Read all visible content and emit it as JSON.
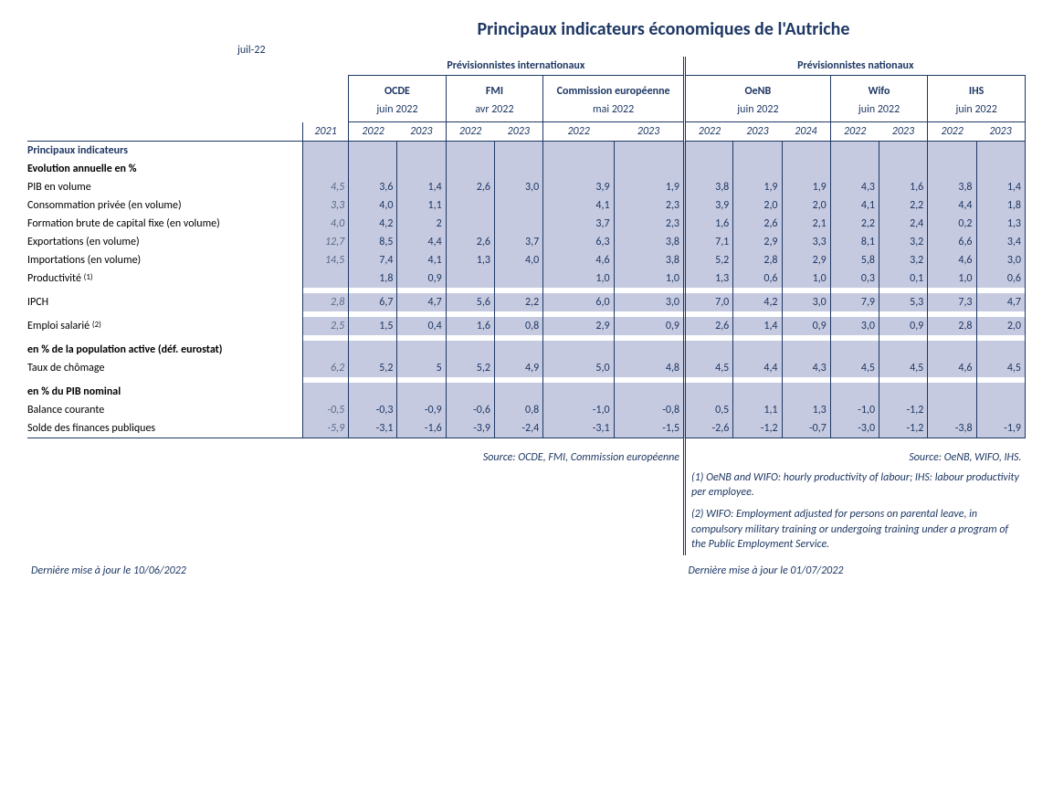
{
  "title": "Principaux indicateurs économiques de l'Autriche",
  "top_date": "juil-22",
  "groups": {
    "intl": "Prévisionnistes internationaux",
    "natl": "Prévisionnistes nationaux"
  },
  "forecasters": {
    "ocde": {
      "name": "OCDE",
      "date": "juin 2022"
    },
    "fmi": {
      "name": "FMI",
      "date": "avr 2022"
    },
    "ce": {
      "name": "Commission européenne",
      "date": "mai 2022"
    },
    "oenb": {
      "name": "OeNB",
      "date": "juin 2022"
    },
    "wifo": {
      "name": "Wifo",
      "date": "juin 2022"
    },
    "ihs": {
      "name": "IHS",
      "date": "juin 2022"
    }
  },
  "years": {
    "y2021": "2021",
    "y2022": "2022",
    "y2023": "2023",
    "y2024": "2024"
  },
  "sections": {
    "main": "Principaux indicateurs",
    "evol": "Evolution annuelle en %",
    "pop": "en % de la population active (déf. eurostat)",
    "pib": "en % du PIB nominal"
  },
  "rows": {
    "pib_vol": {
      "label": "PIB en volume",
      "y2021": "4,5",
      "ocde": [
        "3,6",
        "1,4"
      ],
      "fmi": [
        "2,6",
        "3,0"
      ],
      "ce": [
        "3,9",
        "1,9"
      ],
      "oenb": [
        "3,8",
        "1,9",
        "1,9"
      ],
      "wifo": [
        "4,3",
        "1,6"
      ],
      "ihs": [
        "3,8",
        "1,4"
      ]
    },
    "conso": {
      "label": "Consommation privée (en volume)",
      "y2021": "3,3",
      "ocde": [
        "4,0",
        "1,1"
      ],
      "fmi": [
        "",
        ""
      ],
      "ce": [
        "4,1",
        "2,3"
      ],
      "oenb": [
        "3,9",
        "2,0",
        "2,0"
      ],
      "wifo": [
        "4,1",
        "2,2"
      ],
      "ihs": [
        "4,4",
        "1,8"
      ]
    },
    "fbcf": {
      "label": "Formation brute de capital fixe (en volume)",
      "y2021": "4,0",
      "ocde": [
        "4,2",
        "2"
      ],
      "fmi": [
        "",
        ""
      ],
      "ce": [
        "3,7",
        "2,3"
      ],
      "oenb": [
        "1,6",
        "2,6",
        "2,1"
      ],
      "wifo": [
        "2,2",
        "2,4"
      ],
      "ihs": [
        "0,2",
        "1,3"
      ]
    },
    "exports": {
      "label": "Exportations (en volume)",
      "y2021": "12,7",
      "ocde": [
        "8,5",
        "4,4"
      ],
      "fmi": [
        "2,6",
        "3,7"
      ],
      "ce": [
        "6,3",
        "3,8"
      ],
      "oenb": [
        "7,1",
        "2,9",
        "3,3"
      ],
      "wifo": [
        "8,1",
        "3,2"
      ],
      "ihs": [
        "6,6",
        "3,4"
      ]
    },
    "imports": {
      "label": "Importations (en volume)",
      "y2021": "14,5",
      "ocde": [
        "7,4",
        "4,1"
      ],
      "fmi": [
        "1,3",
        "4,0"
      ],
      "ce": [
        "4,6",
        "3,8"
      ],
      "oenb": [
        "5,2",
        "2,8",
        "2,9"
      ],
      "wifo": [
        "5,8",
        "3,2"
      ],
      "ihs": [
        "4,6",
        "3,0"
      ]
    },
    "prod": {
      "label": "Productivité",
      "note_ref": "(1)",
      "y2021": "",
      "ocde": [
        "1,8",
        "0,9"
      ],
      "fmi": [
        "",
        ""
      ],
      "ce": [
        "1,0",
        "1,0"
      ],
      "oenb": [
        "1,3",
        "0,6",
        "1,0"
      ],
      "wifo": [
        "0,3",
        "0,1"
      ],
      "ihs": [
        "1,0",
        "0,6"
      ]
    },
    "ipch": {
      "label": "IPCH",
      "y2021": "2,8",
      "ocde": [
        "6,7",
        "4,7"
      ],
      "fmi": [
        "5,6",
        "2,2"
      ],
      "ce": [
        "6,0",
        "3,0"
      ],
      "oenb": [
        "7,0",
        "4,2",
        "3,0"
      ],
      "wifo": [
        "7,9",
        "5,3"
      ],
      "ihs": [
        "7,3",
        "4,7"
      ]
    },
    "emploi": {
      "label": "Emploi salarié",
      "note_ref": "(2)",
      "y2021": "2,5",
      "ocde": [
        "1,5",
        "0,4"
      ],
      "fmi": [
        "1,6",
        "0,8"
      ],
      "ce": [
        "2,9",
        "0,9"
      ],
      "oenb": [
        "2,6",
        "1,4",
        "0,9"
      ],
      "wifo": [
        "3,0",
        "0,9"
      ],
      "ihs": [
        "2,8",
        "2,0"
      ]
    },
    "chomage": {
      "label": "Taux de chômage",
      "y2021": "6,2",
      "ocde": [
        "5,2",
        "5"
      ],
      "fmi": [
        "5,2",
        "4,9"
      ],
      "ce": [
        "5,0",
        "4,8"
      ],
      "oenb": [
        "4,5",
        "4,4",
        "4,3"
      ],
      "wifo": [
        "4,5",
        "4,5"
      ],
      "ihs": [
        "4,6",
        "4,5"
      ]
    },
    "balance": {
      "label": "Balance courante",
      "y2021": "-0,5",
      "ocde": [
        "-0,3",
        "-0,9"
      ],
      "fmi": [
        "-0,6",
        "0,8"
      ],
      "ce": [
        "-1,0",
        "-0,8"
      ],
      "oenb": [
        "0,5",
        "1,1",
        "1,3"
      ],
      "wifo": [
        "-1,0",
        "-1,2"
      ],
      "ihs": [
        "",
        ""
      ]
    },
    "solde": {
      "label": "Solde des finances publiques",
      "y2021": "-5,9",
      "ocde": [
        "-3,1",
        "-1,6"
      ],
      "fmi": [
        "-3,9",
        "-2,4"
      ],
      "ce": [
        "-3,1",
        "-1,5"
      ],
      "oenb": [
        "-2,6",
        "-1,2",
        "-0,7"
      ],
      "wifo": [
        "-3,0",
        "-1,2"
      ],
      "ihs": [
        "-3,8",
        "-1,9"
      ]
    }
  },
  "sources": {
    "intl": "Source: OCDE, FMI, Commission européenne",
    "natl": "Source: OeNB, WIFO, IHS."
  },
  "notes": {
    "n1": "(1)  OeNB and WIFO: hourly productivity of labour; IHS: labour productivity per employee.",
    "n2": "(2)  WIFO: Employment adjusted for persons on parental leave, in compulsory military training or undergoing training under a program of the Public Employment Service."
  },
  "updates": {
    "left": "Dernière mise à jour le 10/06/2022",
    "right": "Dernière mise à jour le  01/07/2022"
  },
  "colors": {
    "primary": "#1f3864",
    "shaded_bg": "#c5cae0",
    "italic_gray": "#5a6b88",
    "background": "#ffffff"
  }
}
